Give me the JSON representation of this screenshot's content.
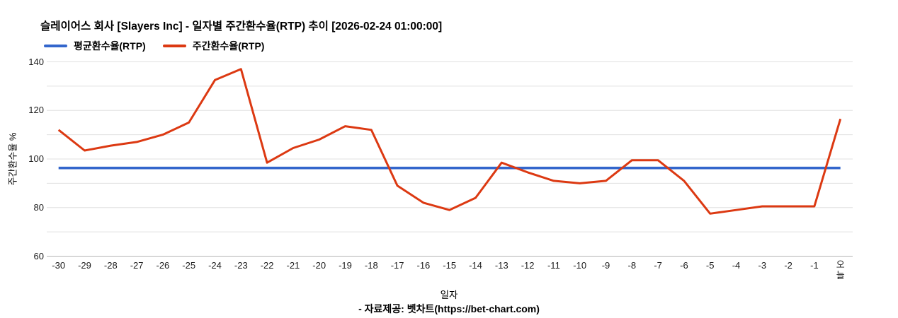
{
  "header": {
    "title": "슬레이어스 회사 [Slayers Inc] - 일자별 주간환수율(RTP) 추이 [2026-02-24 01:00:00]"
  },
  "legend": {
    "items": [
      {
        "label": "평균환수율(RTP)",
        "color": "#3366cc"
      },
      {
        "label": "주간환수율(RTP)",
        "color": "#dc3912"
      }
    ]
  },
  "footer": {
    "text": "- 자료제공: 벳차트(https://bet-chart.com)"
  },
  "chart_data": {
    "type": "line",
    "title": "슬레이어스 회사 [Slayers Inc] - 일자별 주간환수율(RTP) 추이 [2026-02-24 01:00:00]",
    "xlabel": "일자",
    "ylabel": "주간환수율 %",
    "ylim": [
      60,
      140
    ],
    "ytick_step": 10,
    "ytick_labels": [
      "140",
      "120",
      "100",
      "80",
      "60"
    ],
    "ytick_label_values": [
      140,
      120,
      100,
      80,
      60
    ],
    "grid": true,
    "legend_position": "top-left",
    "categories": [
      "-30",
      "-29",
      "-28",
      "-27",
      "-26",
      "-25",
      "-24",
      "-23",
      "-22",
      "-21",
      "-20",
      "-19",
      "-18",
      "-17",
      "-16",
      "-15",
      "-14",
      "-13",
      "-12",
      "-11",
      "-10",
      "-9",
      "-8",
      "-7",
      "-6",
      "-5",
      "-4",
      "-3",
      "-2",
      "-1",
      "오늘"
    ],
    "series": [
      {
        "name": "평균환수율(RTP)",
        "color": "#3366cc",
        "constant_value": 96.3
      },
      {
        "name": "주간환수율(RTP)",
        "color": "#dc3912",
        "values": [
          112,
          103.5,
          105.5,
          107,
          110,
          115,
          132.5,
          137,
          98.5,
          104.5,
          108,
          113.5,
          112,
          89,
          82,
          79,
          84,
          98.5,
          94.5,
          91,
          90,
          91,
          99.5,
          99.5,
          91,
          77.5,
          79,
          80.5,
          80.5,
          80.5,
          116.5
        ]
      }
    ],
    "gridline_color": "#e0e0e0",
    "baseline_color": "#b3b3b3"
  }
}
